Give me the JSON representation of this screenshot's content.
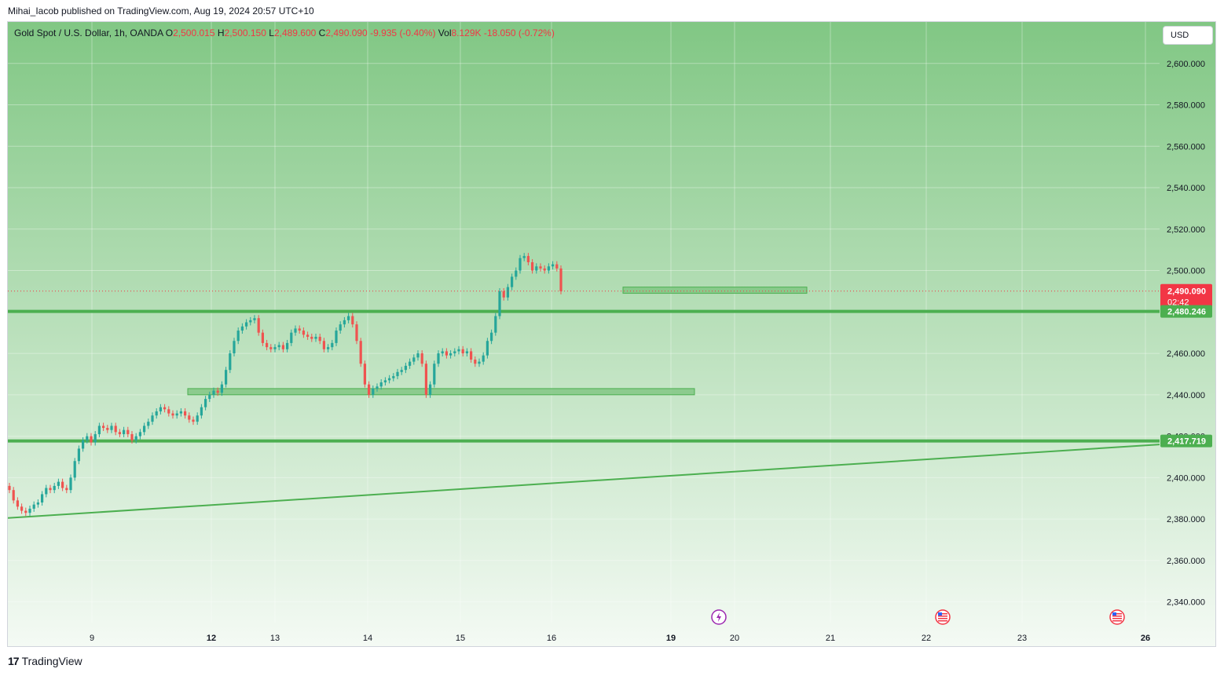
{
  "header": {
    "published_by": "Mihai_Iacob published on TradingView.com, Aug 19, 2024 20:57 UTC+10"
  },
  "legend": {
    "symbol": "Gold Spot / U.S. Dollar, 1h, OANDA",
    "open_label": "O",
    "open": "2,500.015",
    "high_label": "H",
    "high": "2,500.150",
    "low_label": "L",
    "low": "2,489.600",
    "close_label": "C",
    "close": "2,490.090",
    "change": "-9.935 (-0.40%)",
    "vol_label": "Vol",
    "vol": "8.129K",
    "vol_change": "-18.050 (-0.72%)"
  },
  "currency_button": "USD",
  "footer": {
    "brand": "TradingView",
    "logo_mark": "17"
  },
  "colors": {
    "up": "#26a69a",
    "down": "#ef5350",
    "zone_line": "#4caf50",
    "zone_fill": "#81c784",
    "trend_line": "#4caf50",
    "price_tag": "#f23645",
    "level_tag": "#4caf50",
    "background_top": "#81c784",
    "background_bottom": "#f4faf4"
  },
  "chart_data": {
    "type": "candlestick",
    "title": "Gold Spot / U.S. Dollar, 1h, OANDA",
    "y_axis": {
      "ylim": [
        2330,
        2620
      ],
      "ticks": [
        "2,340.000",
        "2,360.000",
        "2,380.000",
        "2,400.000",
        "2,420.000",
        "2,440.000",
        "2,460.000",
        "2,480.000",
        "2,500.000",
        "2,520.000",
        "2,540.000",
        "2,560.000",
        "2,580.000",
        "2,600.000"
      ],
      "tick_values": [
        2340,
        2360,
        2380,
        2400,
        2420,
        2440,
        2460,
        2480,
        2500,
        2520,
        2540,
        2560,
        2580,
        2600
      ]
    },
    "x_axis": {
      "ticks": [
        "9",
        "12",
        "13",
        "14",
        "15",
        "16",
        "19",
        "20",
        "21",
        "22",
        "23",
        "26"
      ],
      "bold_ticks": [
        "12",
        "19",
        "26"
      ]
    },
    "grid": true,
    "last_price": {
      "value": 2490.09,
      "label": "2,490.090",
      "countdown": "02:42"
    },
    "horizontal_levels": [
      {
        "value": 2480.246,
        "label": "2,480.246"
      },
      {
        "value": 2417.719,
        "label": "2,417.719"
      }
    ],
    "zones": [
      {
        "from_date": "Aug 18",
        "to_date": "Aug 21",
        "low": 2489,
        "high": 2492
      },
      {
        "from_date": "Aug 12",
        "to_date": "Aug 16",
        "low": 2440,
        "high": 2443
      }
    ],
    "trend_line": {
      "start_date": "Aug 8",
      "start": 2380.5,
      "end_date": "Aug 26",
      "end": 2416.0
    },
    "event_markers": [
      {
        "date": "Aug 19",
        "icon": "lightning-icon"
      },
      {
        "date": "Aug 22",
        "icon": "us-flag-icon"
      },
      {
        "date": "Aug 26",
        "icon": "us-flag-icon"
      }
    ],
    "candles_approx_close": [
      2394,
      2389,
      2386,
      2384,
      2383,
      2385,
      2387,
      2388,
      2392,
      2395,
      2394,
      2396,
      2398,
      2395,
      2394,
      2400,
      2408,
      2414,
      2418,
      2420,
      2417,
      2421,
      2425,
      2424,
      2423,
      2425,
      2422,
      2421,
      2423,
      2421,
      2418,
      2420,
      2422,
      2425,
      2427,
      2430,
      2432,
      2434,
      2433,
      2431,
      2430,
      2431,
      2432,
      2430,
      2428,
      2427,
      2430,
      2434,
      2438,
      2440,
      2442,
      2441,
      2445,
      2452,
      2460,
      2466,
      2471,
      2473,
      2475,
      2476,
      2477,
      2470,
      2465,
      2463,
      2462,
      2463,
      2464,
      2462,
      2465,
      2470,
      2472,
      2471,
      2469,
      2468,
      2467,
      2468,
      2466,
      2462,
      2463,
      2465,
      2471,
      2474,
      2476,
      2478,
      2474,
      2466,
      2455,
      2445,
      2440,
      2443,
      2444,
      2446,
      2447,
      2448,
      2449,
      2451,
      2452,
      2454,
      2456,
      2458,
      2460,
      2455,
      2440,
      2445,
      2455,
      2460,
      2461,
      2459,
      2460,
      2461,
      2462,
      2460,
      2461,
      2457,
      2455,
      2456,
      2459,
      2466,
      2470,
      2478,
      2490,
      2487,
      2492,
      2497,
      2500,
      2506,
      2507,
      2504,
      2500,
      2502,
      2501,
      2500,
      2502,
      2503,
      2501,
      2490
    ]
  }
}
